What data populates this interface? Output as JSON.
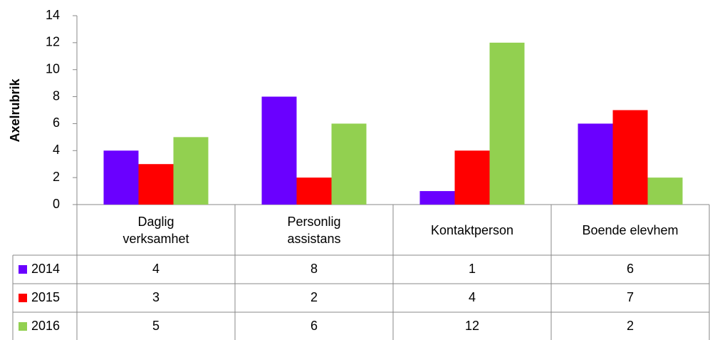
{
  "chart_data": {
    "type": "bar",
    "y_label": "Axelrubrik",
    "categories": [
      "Daglig verksamhet",
      "Personlig assistans",
      "Kontaktperson",
      "Boende elevhem"
    ],
    "series": [
      {
        "name": "2014",
        "color": "#6a00ff",
        "values": [
          4,
          8,
          1,
          6
        ]
      },
      {
        "name": "2015",
        "color": "#ff0000",
        "values": [
          3,
          2,
          4,
          7
        ]
      },
      {
        "name": "2016",
        "color": "#92d050",
        "values": [
          5,
          6,
          12,
          2
        ]
      }
    ],
    "ylim": [
      0,
      14
    ],
    "yticks": [
      0,
      2,
      4,
      6,
      8,
      10,
      12,
      14
    ],
    "data_table": true
  }
}
